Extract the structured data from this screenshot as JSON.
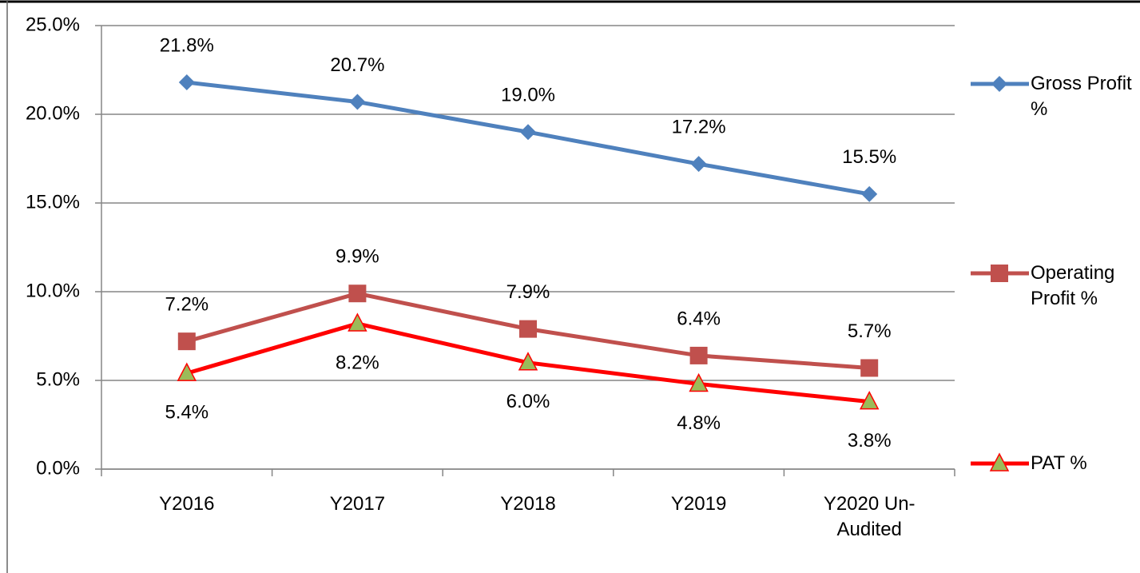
{
  "chart_data": {
    "type": "line",
    "categories": [
      "Y2016",
      "Y2017",
      "Y2018",
      "Y2019",
      "Y2020 Un-Audited"
    ],
    "ylim": [
      0,
      25
    ],
    "yticks": [
      {
        "value": 0,
        "label": "0.0%"
      },
      {
        "value": 5,
        "label": "5.0%"
      },
      {
        "value": 10,
        "label": "10.0%"
      },
      {
        "value": 15,
        "label": "15.0%"
      },
      {
        "value": 20,
        "label": "20.0%"
      },
      {
        "value": 25,
        "label": "25.0%"
      }
    ],
    "grid": true,
    "legend": "right",
    "series": [
      {
        "name": "Gross Profit %",
        "color": "#4f81bd",
        "marker": "diamond",
        "values": [
          21.8,
          20.7,
          19.0,
          17.2,
          15.5
        ],
        "value_labels": [
          "21.8%",
          "20.7%",
          "19.0%",
          "17.2%",
          "15.5%"
        ]
      },
      {
        "name": "Operating Profit %",
        "color": "#c0504d",
        "marker": "square",
        "values": [
          7.2,
          9.9,
          7.9,
          6.4,
          5.7
        ],
        "value_labels": [
          "7.2%",
          "9.9%",
          "7.9%",
          "6.4%",
          "5.7%"
        ]
      },
      {
        "name": "PAT %",
        "color": "#ff0000",
        "marker": "triangle",
        "marker_fill": "#9bbb59",
        "values": [
          5.4,
          8.2,
          6.0,
          4.8,
          3.8
        ],
        "value_labels": [
          "5.4%",
          "8.2%",
          "6.0%",
          "4.8%",
          "3.8%"
        ]
      }
    ]
  }
}
